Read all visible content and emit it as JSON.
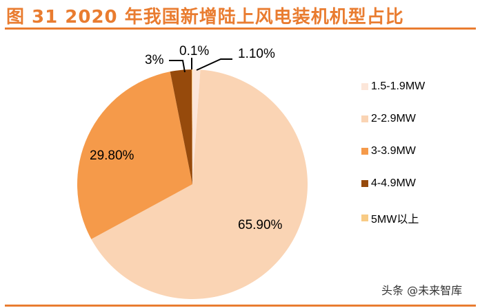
{
  "header": {
    "title": "图 31 2020 年我国新增陆上风电装机机型占比"
  },
  "watermark": "头条 @未来智库",
  "colors": {
    "accent": "#E97C30"
  },
  "chart_data": {
    "type": "pie",
    "title": "图 31 2020 年我国新增陆上风电装机机型占比",
    "start_angle": "12 o'clock, clockwise",
    "legend_position": "right",
    "categories": [
      "1.5-1.9MW",
      "2-2.9MW",
      "3-3.9MW",
      "4-4.9MW",
      "5MW以上"
    ],
    "values": [
      1.1,
      65.9,
      29.8,
      3,
      0.1
    ],
    "labels": [
      "1.10%",
      "65.90%",
      "29.80%",
      "3%",
      "0.1%"
    ],
    "colors": [
      "#FCE6D9",
      "#FAD4B4",
      "#F59A4A",
      "#964A0C",
      "#F8CB85"
    ]
  },
  "legend": {
    "items": [
      {
        "label": "1.5-1.9MW",
        "color": "#FCE6D9"
      },
      {
        "label": "2-2.9MW",
        "color": "#FAD4B4"
      },
      {
        "label": "3-3.9MW",
        "color": "#F59A4A"
      },
      {
        "label": "4-4.9MW",
        "color": "#964A0C"
      },
      {
        "label": "5MW以上",
        "color": "#F8CB85"
      }
    ]
  }
}
